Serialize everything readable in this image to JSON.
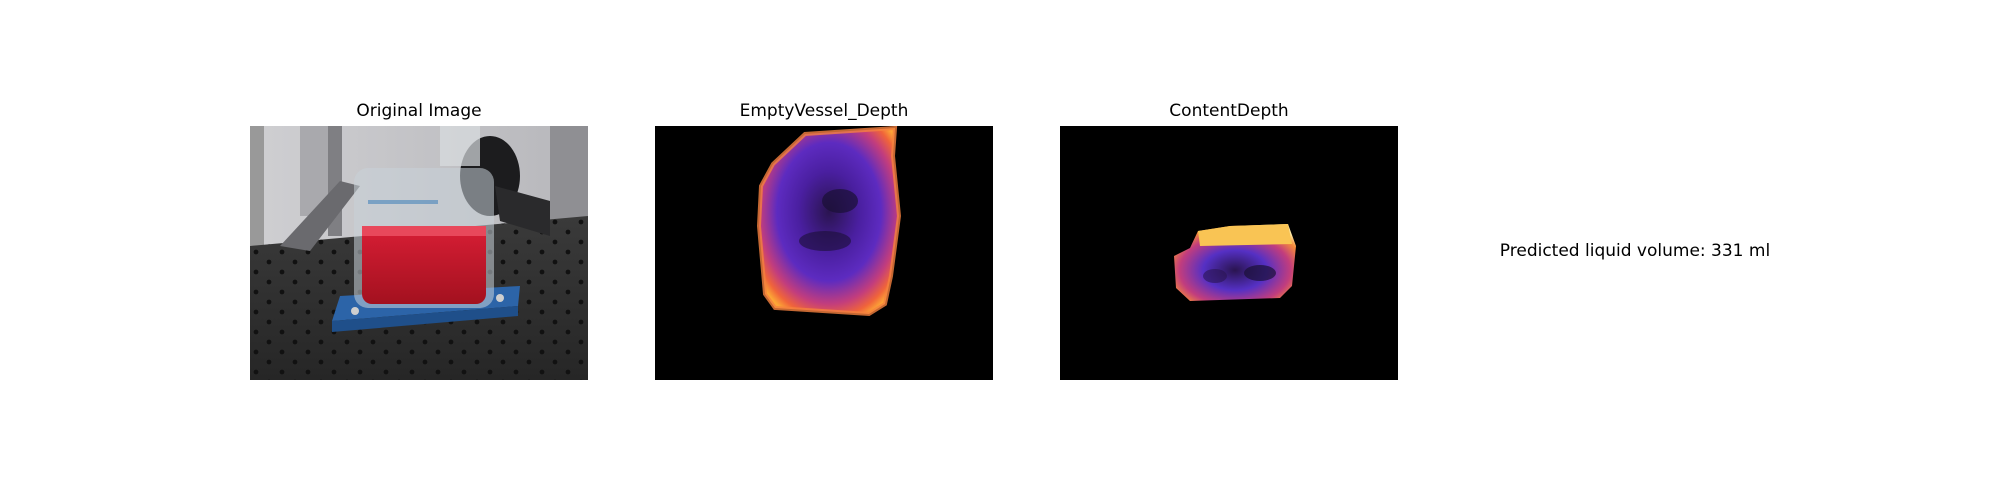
{
  "panels": [
    {
      "title": "Original Image",
      "image": "photo of a glass bottle holding red liquid on a blue holder on an optical table"
    },
    {
      "title": "EmptyVessel_Depth",
      "image": "depth map of empty vessel in plasma colormap on black background"
    },
    {
      "title": "ContentDepth",
      "image": "depth map of liquid content in plasma colormap on black background"
    }
  ],
  "result": {
    "text": "Predicted liquid volume: 331 ml"
  }
}
